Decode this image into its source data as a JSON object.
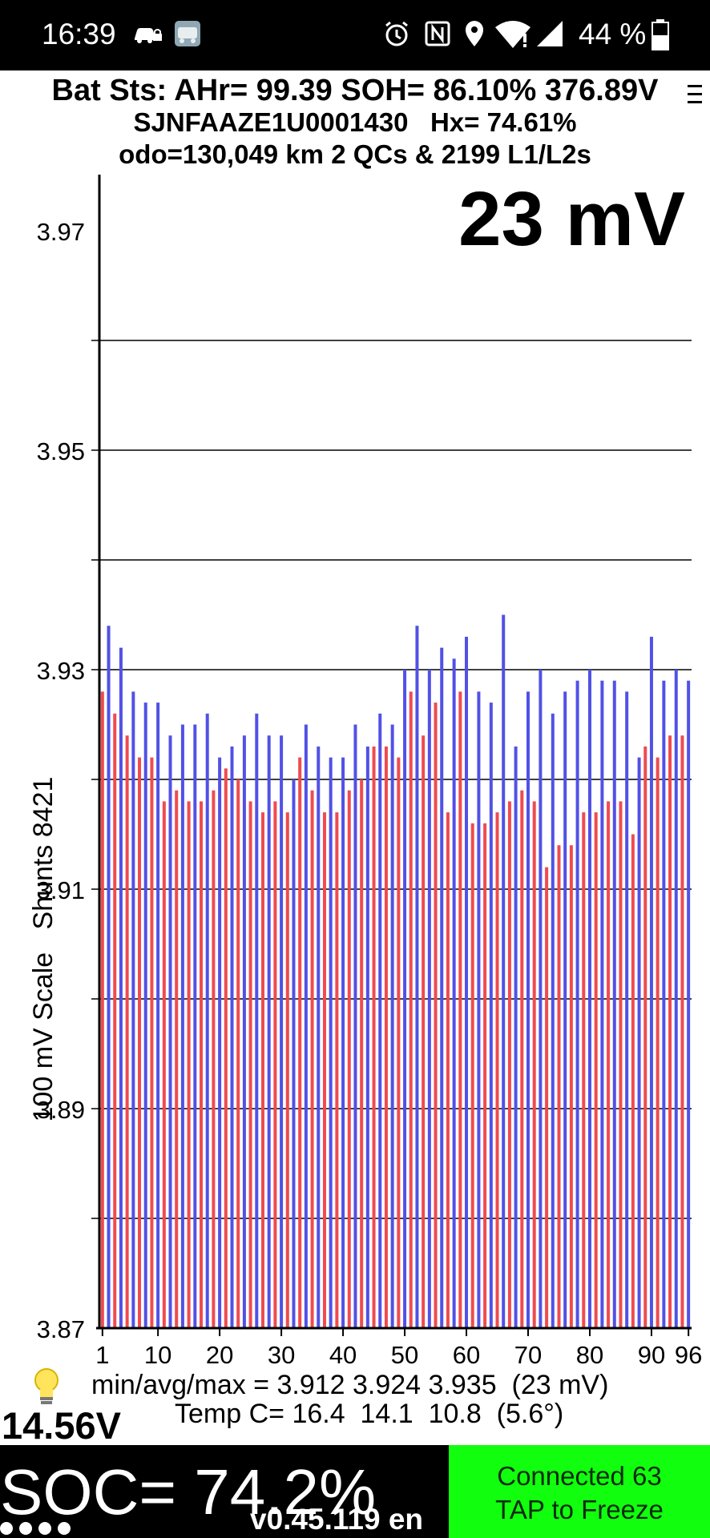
{
  "status_bar": {
    "time": "16:39",
    "battery_percent": "44 %",
    "icons": [
      "car-lock-icon",
      "app-thumbnail-icon",
      "alarm-icon",
      "nfc-icon",
      "location-icon",
      "wifi-icon",
      "signal-icon",
      "battery-icon"
    ]
  },
  "header": {
    "line1": "Bat Sts: AHr= 99.39 SOH= 86.10% 376.89V",
    "line2": "SJNFAAZE1U0001430   Hx= 74.61%",
    "line3": "odo=130,049 km 2 QCs & 2199 L1/L2s",
    "menu_icon": "menu-icon"
  },
  "chart": {
    "spread_label": "23 mV",
    "y_axis_title": "100 mV Scale   Shunts 8421",
    "minmax_text": "min/avg/max = 3.912 3.924 3.935  (23 mV)",
    "temp_text": "Temp C= 16.4  14.1  10.8  (5.6°)"
  },
  "chart_data": {
    "type": "bar",
    "title": "",
    "xlabel": "",
    "ylabel": "100 mV Scale   Shunts 8421",
    "ylim": [
      3.87,
      3.97
    ],
    "y_ticks": [
      3.97,
      3.95,
      3.93,
      3.91,
      3.89,
      3.87
    ],
    "y_gridlines": [
      3.96,
      3.95,
      3.94,
      3.93,
      3.92,
      3.91,
      3.9,
      3.89,
      3.88
    ],
    "x_ticks": [
      1,
      10,
      20,
      30,
      40,
      50,
      60,
      70,
      80,
      90,
      96
    ],
    "x": [
      1,
      2,
      3,
      4,
      5,
      6,
      7,
      8,
      9,
      10,
      11,
      12,
      13,
      14,
      15,
      16,
      17,
      18,
      19,
      20,
      21,
      22,
      23,
      24,
      25,
      26,
      27,
      28,
      29,
      30,
      31,
      32,
      33,
      34,
      35,
      36,
      37,
      38,
      39,
      40,
      41,
      42,
      43,
      44,
      45,
      46,
      47,
      48,
      49,
      50,
      51,
      52,
      53,
      54,
      55,
      56,
      57,
      58,
      59,
      60,
      61,
      62,
      63,
      64,
      65,
      66,
      67,
      68,
      69,
      70,
      71,
      72,
      73,
      74,
      75,
      76,
      77,
      78,
      79,
      80,
      81,
      82,
      83,
      84,
      85,
      86,
      87,
      88,
      89,
      90,
      91,
      92,
      93,
      94,
      95,
      96
    ],
    "values": [
      3.928,
      3.934,
      3.926,
      3.932,
      3.924,
      3.928,
      3.922,
      3.927,
      3.922,
      3.927,
      3.918,
      3.924,
      3.919,
      3.925,
      3.918,
      3.925,
      3.918,
      3.926,
      3.919,
      3.922,
      3.921,
      3.923,
      3.92,
      3.924,
      3.918,
      3.926,
      3.917,
      3.924,
      3.918,
      3.924,
      3.917,
      3.92,
      3.922,
      3.925,
      3.919,
      3.923,
      3.917,
      3.922,
      3.917,
      3.922,
      3.919,
      3.925,
      3.92,
      3.923,
      3.923,
      3.926,
      3.923,
      3.925,
      3.922,
      3.93,
      3.928,
      3.934,
      3.924,
      3.93,
      3.927,
      3.932,
      3.917,
      3.931,
      3.928,
      3.933,
      3.916,
      3.928,
      3.916,
      3.927,
      3.917,
      3.935,
      3.918,
      3.923,
      3.919,
      3.928,
      3.918,
      3.93,
      3.912,
      3.926,
      3.914,
      3.928,
      3.914,
      3.929,
      3.917,
      3.93,
      3.917,
      3.929,
      3.918,
      3.929,
      3.918,
      3.928,
      3.915,
      3.922,
      3.923,
      3.933,
      3.922,
      3.929,
      3.924,
      3.93,
      3.924,
      3.929
    ],
    "colors": {
      "odd": "#ef4b4f",
      "even": "#5151e6"
    },
    "grid": true,
    "legend": "none"
  },
  "bottom": {
    "aux_voltage": "14.56V",
    "soc": "SOC= 74.2%",
    "version": "v0.45.119 en",
    "connect_line1": "Connected 63",
    "connect_line2": "TAP to Freeze"
  }
}
